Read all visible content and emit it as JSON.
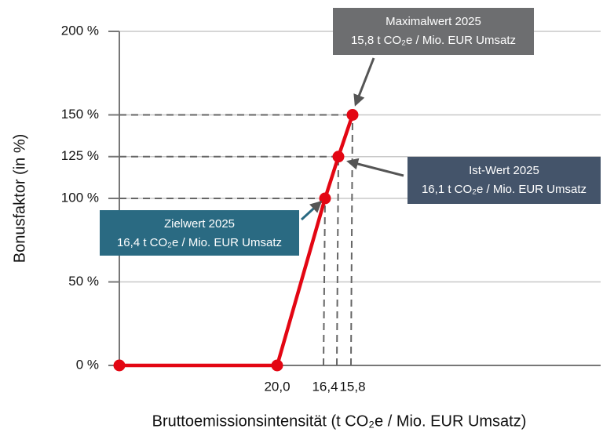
{
  "chart_data": {
    "type": "line",
    "y_label": "Bonusfaktor (in %)",
    "x_label": "Bruttoemissionsintensität (t CO₂e / Mio. EUR Umsatz)",
    "categories": [
      null,
      "20,0",
      "16,4",
      null,
      "15,8"
    ],
    "series": [
      {
        "color": "#e30613",
        "values": [
          0,
          0,
          100,
          125,
          150
        ]
      }
    ],
    "ylim": [
      0,
      200
    ],
    "yticks": [
      {
        "value": 0,
        "label": "0 %"
      },
      {
        "value": 50,
        "label": "50 %"
      },
      {
        "value": 100,
        "label": "100 %"
      },
      {
        "value": 125,
        "label": "125 %"
      },
      {
        "value": 150,
        "label": "150 %"
      },
      {
        "value": 200,
        "label": "200 %"
      }
    ],
    "grid": true,
    "annotations": [
      {
        "title": "Maximalwert 2025",
        "text": "15,8 t CO₂e / Mio. EUR Umsatz",
        "color": "#6d6e70"
      },
      {
        "title": "Ist-Wert 2025",
        "text": "16,1 t CO₂e / Mio. EUR Umsatz",
        "color": "#44546a"
      },
      {
        "title": "Zielwert 2025",
        "text": "16,4 t CO₂e / Mio. EUR Umsatz",
        "color": "#2a6a82"
      }
    ]
  }
}
